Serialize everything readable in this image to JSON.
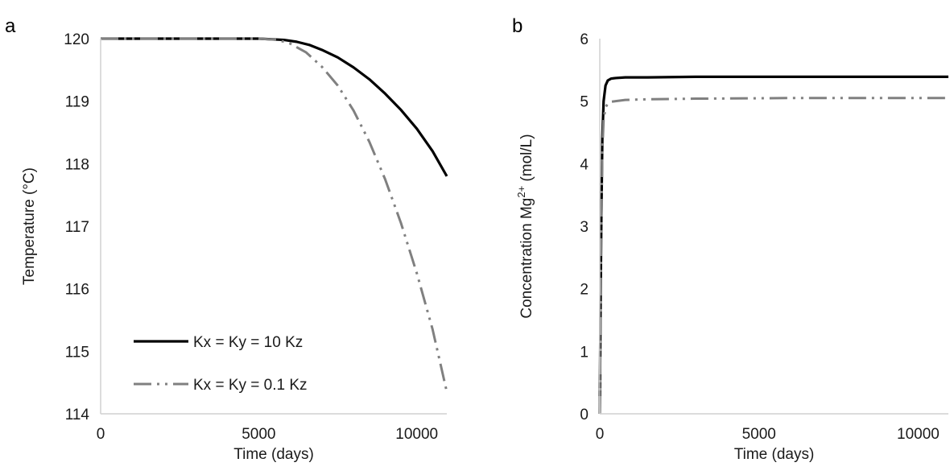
{
  "chart_data": [
    {
      "panel_label": "a",
      "type": "line",
      "xlabel": "Time (days)",
      "ylabel": "Temperature (°C)",
      "xlim": [
        0,
        10950
      ],
      "ylim": [
        114,
        120
      ],
      "x_ticks": [
        0,
        5000,
        10000
      ],
      "y_ticks": [
        114,
        115,
        116,
        117,
        118,
        119,
        120
      ],
      "grid": false,
      "legend": "bottom-left",
      "series": [
        {
          "name": "Kx = Ky = 10 Kz",
          "color": "#000000",
          "style": "solid",
          "x": [
            0,
            5000,
            5800,
            6200,
            6600,
            7000,
            7500,
            8000,
            8500,
            9000,
            9500,
            10000,
            10500,
            10950
          ],
          "y": [
            120,
            120,
            119.98,
            119.95,
            119.9,
            119.82,
            119.7,
            119.54,
            119.35,
            119.12,
            118.86,
            118.56,
            118.2,
            117.8
          ]
        },
        {
          "name": "Kx = Ky = 0.1 Kz",
          "color": "#808080",
          "style": "dash-dot-dot",
          "x": [
            0,
            5000,
            5600,
            6000,
            6500,
            7000,
            7500,
            8000,
            8500,
            9000,
            9500,
            10000,
            10500,
            10950
          ],
          "y": [
            120,
            120,
            119.98,
            119.92,
            119.78,
            119.55,
            119.25,
            118.85,
            118.35,
            117.75,
            117.05,
            116.25,
            115.35,
            114.35
          ]
        }
      ]
    },
    {
      "panel_label": "b",
      "type": "line",
      "xlabel": "Time (days)",
      "ylabel_main": "Concentration Mg",
      "ylabel_sup": "2+",
      "ylabel_unit": " (mol/L)",
      "xlim": [
        0,
        10950
      ],
      "ylim": [
        0,
        6
      ],
      "x_ticks": [
        0,
        5000,
        10000
      ],
      "y_ticks": [
        0,
        1,
        2,
        3,
        4,
        5,
        6
      ],
      "grid": false,
      "series": [
        {
          "name": "Kx = Ky = 10 Kz",
          "color": "#000000",
          "style": "solid",
          "x": [
            0,
            20,
            50,
            80,
            120,
            180,
            250,
            350,
            500,
            800,
            1500,
            3000,
            6000,
            10950
          ],
          "y": [
            0,
            1.5,
            3.2,
            4.4,
            5.0,
            5.25,
            5.33,
            5.36,
            5.37,
            5.38,
            5.38,
            5.39,
            5.39,
            5.39
          ]
        },
        {
          "name": "Kx = Ky = 0.1 Kz",
          "color": "#808080",
          "style": "dash-dot-dot",
          "x": [
            0,
            20,
            50,
            80,
            120,
            180,
            250,
            350,
            500,
            800,
            1500,
            3000,
            6000,
            10950
          ],
          "y": [
            0,
            1.4,
            3.1,
            4.2,
            4.7,
            4.9,
            4.96,
            4.99,
            5.0,
            5.02,
            5.03,
            5.04,
            5.05,
            5.05
          ]
        }
      ]
    }
  ]
}
